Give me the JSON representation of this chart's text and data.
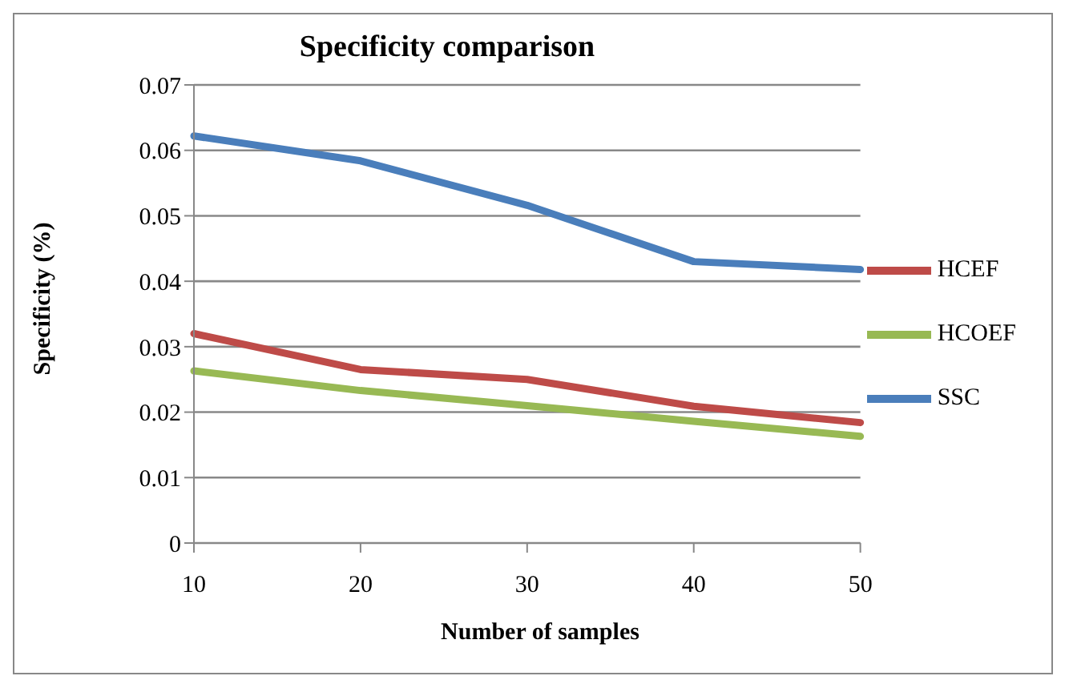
{
  "chart_data": {
    "type": "line",
    "title": "Specificity comparison",
    "xlabel": "Number of samples",
    "ylabel": "Specificity (%)",
    "categories": [
      "10",
      "20",
      "30",
      "40",
      "50"
    ],
    "series": [
      {
        "name": "SSC",
        "color": "#4a7ebb",
        "values": [
          0.0622,
          0.0584,
          0.0516,
          0.043,
          0.0418
        ]
      },
      {
        "name": "HCEF",
        "color": "#be4b48",
        "values": [
          0.032,
          0.0265,
          0.025,
          0.0209,
          0.0184
        ]
      },
      {
        "name": "HCOEF",
        "color": "#98b954",
        "values": [
          0.0263,
          0.0233,
          0.021,
          0.0186,
          0.0163
        ]
      }
    ],
    "ylim": [
      0,
      0.07
    ],
    "yticks": [
      0,
      0.01,
      0.02,
      0.03,
      0.04,
      0.05,
      0.06,
      0.07
    ],
    "grid": "y",
    "legend": "right",
    "marker": "none",
    "line_style": "solid"
  }
}
